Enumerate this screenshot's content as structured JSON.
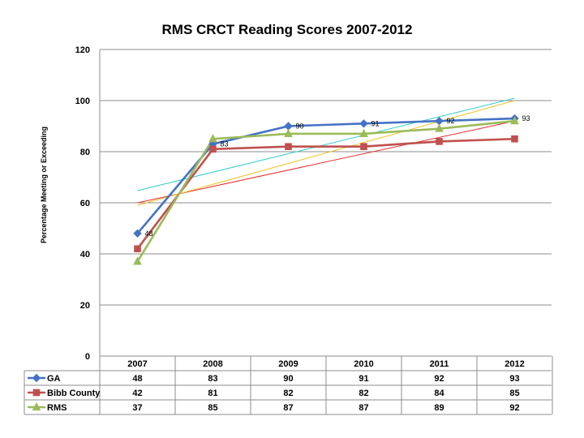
{
  "chart_data": {
    "type": "line",
    "title": "RMS CRCT Reading Scores 2007-2012",
    "xlabel": "",
    "ylabel": "Percentage Meeting or Exceeding",
    "categories": [
      "2007",
      "2008",
      "2009",
      "2010",
      "2011",
      "2012"
    ],
    "ylim": [
      0,
      120
    ],
    "yticks": [
      0,
      20,
      40,
      60,
      80,
      100,
      120
    ],
    "grid": true,
    "legend": "data table",
    "series": [
      {
        "name": "GA",
        "values": [
          48,
          83,
          90,
          91,
          92,
          93
        ],
        "color": "#4472C4",
        "marker": "diamond",
        "trend_color": "#33CCCC"
      },
      {
        "name": "Bibb County",
        "values": [
          42,
          81,
          82,
          82,
          84,
          85
        ],
        "color": "#C0504D",
        "marker": "square",
        "trend_color": "#E03030"
      },
      {
        "name": "RMS",
        "values": [
          37,
          85,
          87,
          87,
          89,
          92
        ],
        "color": "#9BBB59",
        "marker": "triangle",
        "trend_color": "#F0C020"
      }
    ],
    "data_labels": {
      "series": "GA",
      "values": [
        "48",
        "83",
        "90",
        "91",
        "92",
        "93"
      ]
    },
    "trendlines": "linear"
  }
}
